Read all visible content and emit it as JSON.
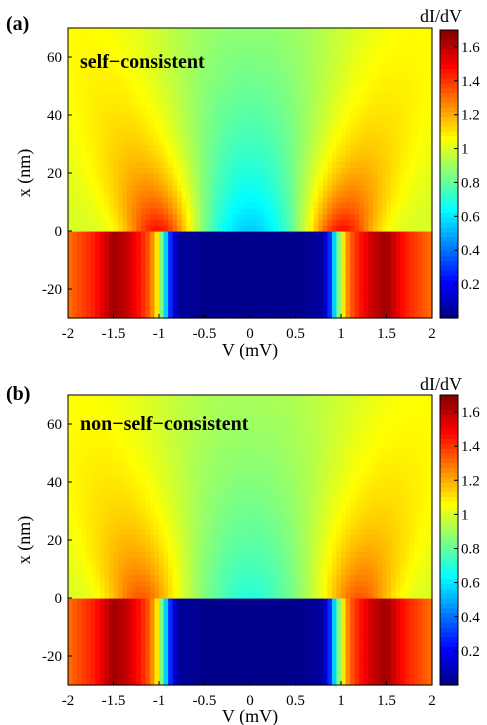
{
  "chart_data": [
    {
      "type": "heatmap",
      "panel_label": "(a)",
      "annotation": "self−consistent",
      "xlabel": "V (mV)",
      "ylabel": "x (nm)",
      "xlim": [
        -2,
        2
      ],
      "ylim": [
        -30,
        70
      ],
      "x_ticks": [
        -2,
        -1.5,
        -1,
        -0.5,
        0,
        0.5,
        1,
        1.5,
        2
      ],
      "x_tick_labels": [
        "-2",
        "-1.5",
        "-1",
        "-0.5",
        "0",
        "0.5",
        "1",
        "1.5",
        "2"
      ],
      "y_ticks": [
        -20,
        0,
        20,
        40,
        60
      ],
      "y_tick_labels": [
        "-20",
        "0",
        "20",
        "40",
        "60"
      ],
      "colorbar": {
        "label": "dI/dV",
        "range": [
          0,
          1.7
        ],
        "ticks": [
          0.2,
          0.4,
          0.6,
          0.8,
          1,
          1.2,
          1.4,
          1.6
        ],
        "tick_labels": [
          "0.2",
          "0.4",
          "0.6",
          "0.8",
          "1",
          "1.2",
          "1.4",
          "1.6"
        ],
        "colormap": "jet"
      },
      "region_boundary_x_nm": 0,
      "lower_region_dIdV_profile": {
        "V": [
          0,
          0.5,
          0.8,
          0.88,
          0.95,
          1.0,
          1.05,
          1.1,
          1.2,
          1.35,
          1.5,
          1.7,
          2.0
        ],
        "dIdV": [
          0.02,
          0.02,
          0.05,
          0.3,
          0.7,
          1.0,
          1.2,
          1.32,
          1.45,
          1.58,
          1.65,
          1.45,
          1.3
        ]
      },
      "upper_region_features": {
        "min_dIdV_at_x0_V0": 0.55,
        "peak_V_at_x0": 1.0,
        "peak_dIdV_at_x0": 1.5,
        "far_field_dIdV": 1.0
      }
    },
    {
      "type": "heatmap",
      "panel_label": "(b)",
      "annotation": "non−self−consistent",
      "xlabel": "V (mV)",
      "ylabel": "x (nm)",
      "xlim": [
        -2,
        2
      ],
      "ylim": [
        -30,
        70
      ],
      "x_ticks": [
        -2,
        -1.5,
        -1,
        -0.5,
        0,
        0.5,
        1,
        1.5,
        2
      ],
      "x_tick_labels": [
        "-2",
        "-1.5",
        "-1",
        "-0.5",
        "0",
        "0.5",
        "1",
        "1.5",
        "2"
      ],
      "y_ticks": [
        -20,
        0,
        20,
        40,
        60
      ],
      "y_tick_labels": [
        "-20",
        "0",
        "20",
        "40",
        "60"
      ],
      "colorbar": {
        "label": "dI/dV",
        "range": [
          0,
          1.7
        ],
        "ticks": [
          0.2,
          0.4,
          0.6,
          0.8,
          1,
          1.2,
          1.4,
          1.6
        ],
        "tick_labels": [
          "0.2",
          "0.4",
          "0.6",
          "0.8",
          "1",
          "1.2",
          "1.4",
          "1.6"
        ],
        "colormap": "jet"
      },
      "region_boundary_x_nm": 0,
      "lower_region_dIdV_profile": {
        "V": [
          0,
          0.5,
          0.8,
          0.88,
          0.95,
          1.0,
          1.05,
          1.1,
          1.2,
          1.35,
          1.5,
          1.7,
          2.0
        ],
        "dIdV": [
          0.02,
          0.02,
          0.05,
          0.3,
          0.7,
          1.0,
          1.2,
          1.32,
          1.45,
          1.58,
          1.65,
          1.45,
          1.3
        ]
      },
      "upper_region_features": {
        "min_dIdV_at_x0_V0": 0.7,
        "peak_V_at_x0": 1.2,
        "peak_dIdV_at_x0": 1.35,
        "far_field_dIdV": 1.0
      }
    }
  ]
}
